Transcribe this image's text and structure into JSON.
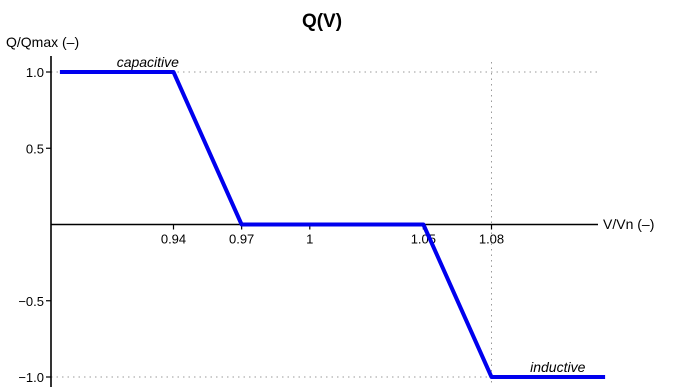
{
  "chart_data": {
    "type": "line",
    "title": "Q(V)",
    "xlabel": "V/Vn (–)",
    "ylabel": "Q/Qmax (–)",
    "xlim": [
      0.9,
      1.12
    ],
    "ylim": [
      -1.05,
      1.12
    ],
    "x_ticks": [
      {
        "value": 0.94,
        "label": "0.94"
      },
      {
        "value": 0.97,
        "label": "0.97"
      },
      {
        "value": 1.0,
        "label": "1"
      },
      {
        "value": 1.05,
        "label": "1.05"
      },
      {
        "value": 1.08,
        "label": "1.08"
      }
    ],
    "y_ticks": [
      {
        "value": 1.0,
        "label": "1.0"
      },
      {
        "value": 0.5,
        "label": "0.5"
      },
      {
        "value": -0.5,
        "label": "−0.5"
      },
      {
        "value": -1.0,
        "label": "−1.0"
      }
    ],
    "x_range": [
      0.89,
      1.13
    ],
    "y_range": [
      -1.03,
      1.07
    ],
    "series": [
      {
        "color": "#0000ee",
        "x": [
          0.89,
          0.94,
          0.97,
          1.05,
          1.08,
          1.13
        ],
        "y": [
          1.0,
          1.0,
          0.0,
          0.0,
          -1.0,
          -1.0
        ]
      }
    ],
    "reference_lines": [
      {
        "axis": "y",
        "value": 1.0,
        "style": "dotted"
      },
      {
        "axis": "y",
        "value": -1.0,
        "style": "dotted"
      },
      {
        "axis": "x",
        "value": 1.08,
        "style": "dotted"
      }
    ],
    "annotations": [
      {
        "text": "capacitive",
        "x": 0.915,
        "y": 1.0
      },
      {
        "text": "inductive",
        "x": 1.097,
        "y": -1.0
      }
    ],
    "grid": false,
    "legend": "none"
  }
}
